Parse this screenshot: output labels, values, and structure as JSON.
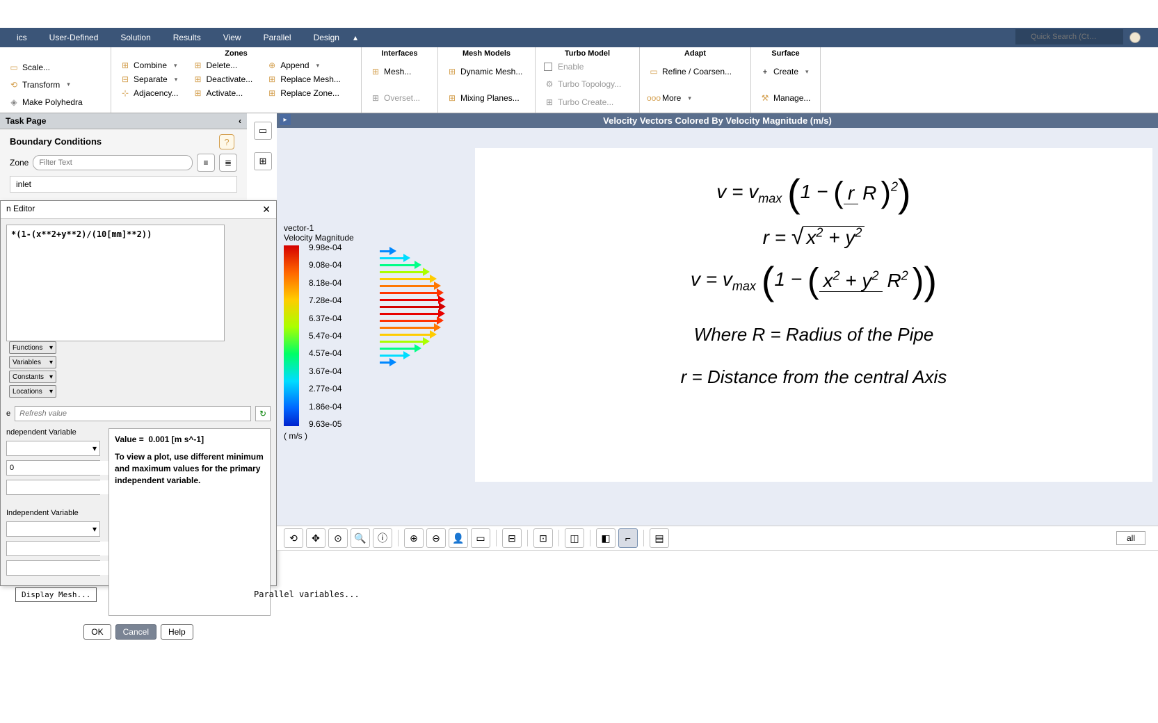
{
  "menubar": {
    "items": [
      "ics",
      "User-Defined",
      "Solution",
      "Results",
      "View",
      "Parallel",
      "Design"
    ],
    "quick_search_placeholder": "Quick Search (Ct…"
  },
  "ribbon": {
    "groups": {
      "mesh_left": {
        "scale": "Scale...",
        "transform": "Transform",
        "polyhedra": "Make Polyhedra"
      },
      "zones": {
        "title": "Zones",
        "col1": [
          "Combine",
          "Separate",
          "Adjacency..."
        ],
        "col2": [
          "Delete...",
          "Deactivate...",
          "Activate..."
        ],
        "col3": [
          "Append",
          "Replace Mesh...",
          "Replace Zone..."
        ]
      },
      "interfaces": {
        "title": "Interfaces",
        "items": [
          "Mesh...",
          "Overset..."
        ]
      },
      "mesh_models": {
        "title": "Mesh Models",
        "items": [
          "Dynamic Mesh...",
          "Mixing Planes..."
        ]
      },
      "turbo": {
        "title": "Turbo Model",
        "enable": "Enable",
        "topo": "Turbo Topology...",
        "create": "Turbo Create..."
      },
      "adapt": {
        "title": "Adapt",
        "refine": "Refine / Coarsen...",
        "more": "More"
      },
      "surface": {
        "title": "Surface",
        "create": "Create",
        "manage": "Manage..."
      }
    }
  },
  "task_page": {
    "title": "Task Page",
    "bc_title": "Boundary Conditions",
    "zone_label": "Zone",
    "zone_filter_placeholder": "Filter Text",
    "zone_selected": "inlet"
  },
  "editor": {
    "title": "n Editor",
    "expression": "*(1-(x**2+y**2)/(10[mm]**2))",
    "func_btns": [
      "Functions",
      "Variables",
      "Constants",
      "Locations"
    ],
    "refresh_placeholder": "Refresh value",
    "indep_var_label": "ndependent Variable",
    "spin_value": "0",
    "indep_var_label2": "Independent Variable",
    "value_label": "Value =",
    "value_text": "0.001 [m s^-1]",
    "value_msg": "To view a plot, use different minimum and maximum values for the primary independent variable.",
    "ok": "OK",
    "cancel": "Cancel",
    "help": "Help"
  },
  "display_mesh": "Display Mesh...",
  "viewport": {
    "title": "Velocity Vectors Colored By Velocity Magnitude (m/s)",
    "colorbar": {
      "name": "vector-1",
      "quantity": "Velocity Magnitude",
      "unit": "( m/s )",
      "labels": [
        "9.98e-04",
        "9.08e-04",
        "8.18e-04",
        "7.28e-04",
        "6.37e-04",
        "5.47e-04",
        "4.57e-04",
        "3.67e-04",
        "2.77e-04",
        "1.86e-04",
        "9.63e-05"
      ],
      "colors": [
        "#d40000",
        "#ff4400",
        "#ff8800",
        "#ffcc00",
        "#ccff00",
        "#77ff00",
        "#00ff44",
        "#00ffaa",
        "#00ddff",
        "#0088ff",
        "#0033dd"
      ]
    },
    "vectors": [
      {
        "len": 14,
        "color": "#0088ff"
      },
      {
        "len": 34,
        "color": "#00ddff"
      },
      {
        "len": 50,
        "color": "#00ff88"
      },
      {
        "len": 62,
        "color": "#aaff00"
      },
      {
        "len": 72,
        "color": "#ffcc00"
      },
      {
        "len": 78,
        "color": "#ff7700"
      },
      {
        "len": 82,
        "color": "#ff3300"
      },
      {
        "len": 84,
        "color": "#e80000"
      },
      {
        "len": 85,
        "color": "#d40000"
      },
      {
        "len": 84,
        "color": "#e80000"
      },
      {
        "len": 82,
        "color": "#ff3300"
      },
      {
        "len": 78,
        "color": "#ff7700"
      },
      {
        "len": 72,
        "color": "#ffcc00"
      },
      {
        "len": 62,
        "color": "#aaff00"
      },
      {
        "len": 50,
        "color": "#00ff88"
      },
      {
        "len": 34,
        "color": "#00ddff"
      },
      {
        "len": 14,
        "color": "#0088ff"
      }
    ],
    "equations": {
      "desc1": "Where R =  Radius of the Pipe",
      "desc2": "r = Distance from the central Axis"
    }
  },
  "vtoolbar": {
    "all_label": "all"
  },
  "console": {
    "line": "Parallel variables..."
  }
}
